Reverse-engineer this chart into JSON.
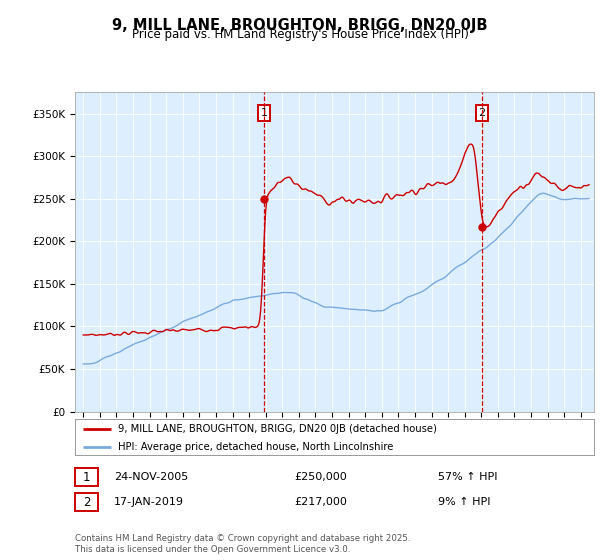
{
  "title": "9, MILL LANE, BROUGHTON, BRIGG, DN20 0JB",
  "subtitle": "Price paid vs. HM Land Registry's House Price Index (HPI)",
  "legend_line1": "9, MILL LANE, BROUGHTON, BRIGG, DN20 0JB (detached house)",
  "legend_line2": "HPI: Average price, detached house, North Lincolnshire",
  "footer": "Contains HM Land Registry data © Crown copyright and database right 2025.\nThis data is licensed under the Open Government Licence v3.0.",
  "sale1_label": "1",
  "sale1_date": "24-NOV-2005",
  "sale1_price": "£250,000",
  "sale1_hpi": "57% ↑ HPI",
  "sale2_label": "2",
  "sale2_date": "17-JAN-2019",
  "sale2_price": "£217,000",
  "sale2_hpi": "9% ↑ HPI",
  "property_color": "#cc0000",
  "hpi_color": "#7aaadd",
  "background_color": "#ddeeff",
  "plot_bg_color": "#ddeeff",
  "sale1_x": 2005.9,
  "sale2_x": 2019.05,
  "sale1_y": 250000,
  "sale2_y": 217000,
  "ylim_max": 375000,
  "ylim_min": 0,
  "yticks": [
    0,
    50000,
    100000,
    150000,
    200000,
    250000,
    300000,
    350000
  ],
  "ytick_labels": [
    "£0",
    "£50K",
    "£100K",
    "£150K",
    "£200K",
    "£250K",
    "£300K",
    "£350K"
  ],
  "xmin": 1994.5,
  "xmax": 2025.8
}
